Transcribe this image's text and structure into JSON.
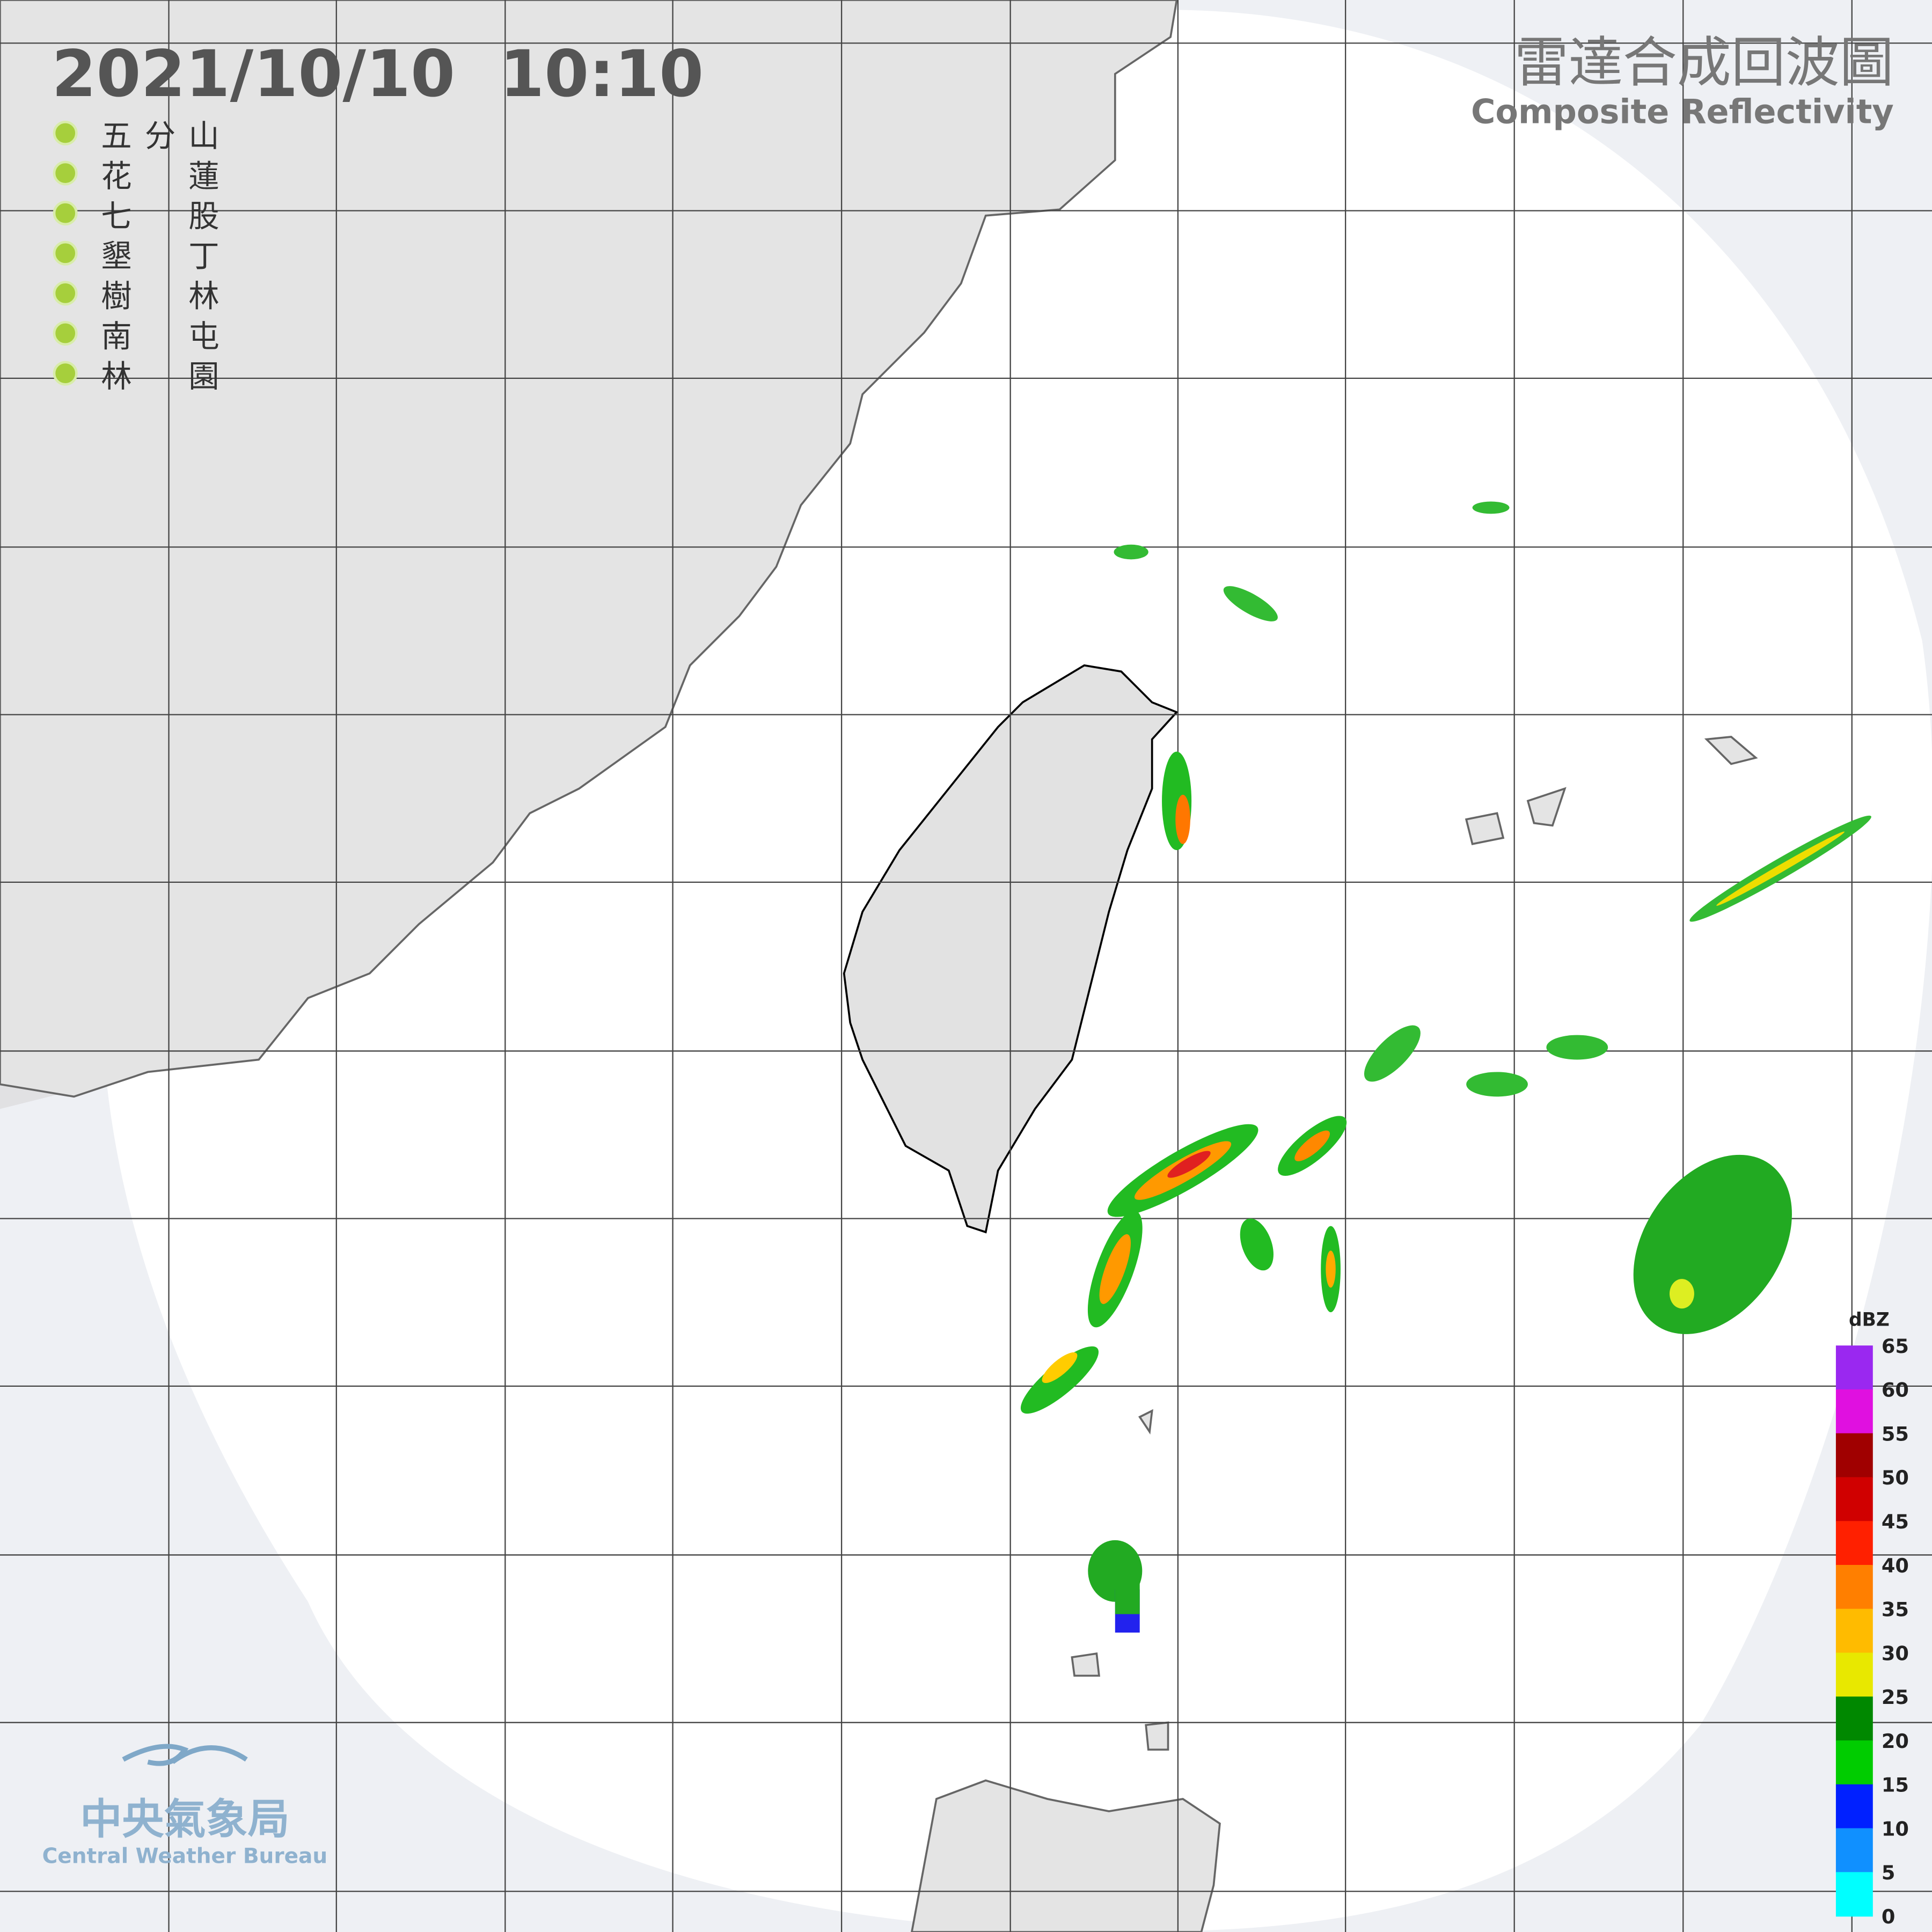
{
  "header": {
    "datetime": "2021/10/10  10:10",
    "title_zh": "雷達合成回波圖",
    "title_en": "Composite Reflectivity"
  },
  "stations": [
    "五分山",
    "花蓮",
    "七股",
    "墾丁",
    "樹林",
    "南屯",
    "林園"
  ],
  "legend": {
    "unit": "dBZ",
    "ticks": [
      65,
      60,
      55,
      50,
      45,
      40,
      35,
      30,
      25,
      20,
      15,
      10,
      5,
      0
    ]
  },
  "logo": {
    "name_zh": "中央氣象局",
    "name_en": "Central Weather Bureau"
  }
}
